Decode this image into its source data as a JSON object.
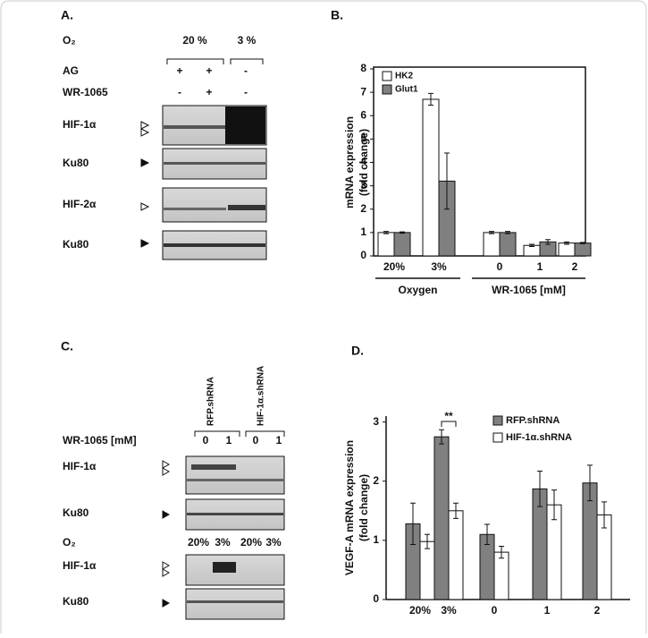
{
  "panel_a": {
    "label": "A.",
    "o2": "O₂",
    "o2_levels": [
      "20 %",
      "3 %"
    ],
    "rows": [
      {
        "name": "AG",
        "marks": [
          "+",
          "+",
          "-"
        ]
      },
      {
        "name": "WR-1065",
        "marks": [
          "-",
          "+",
          "-"
        ]
      }
    ],
    "blots": [
      "HIF-1α",
      "Ku80",
      "HIF-2α",
      "Ku80"
    ]
  },
  "panel_c": {
    "label": "C.",
    "groups": [
      "RFP.shRNA",
      "HIF-1α.shRNA"
    ],
    "wr_label": "WR-1065 [mM]",
    "wr_doses": [
      0,
      1,
      0,
      1
    ],
    "o2": "O₂",
    "o2_levels": [
      "20%",
      "3%",
      "20%",
      "3%"
    ],
    "blots": [
      "HIF-1α",
      "Ku80",
      "HIF-1α",
      "Ku80"
    ]
  },
  "chart_data": [
    {
      "type": "bar",
      "label": "B.",
      "y_label": [
        "mRNA expression",
        "(fold change)"
      ],
      "categories": [
        "20%",
        "3%",
        "0",
        "1",
        "2"
      ],
      "groups": [
        "Oxygen",
        "WR-1065 [mM]"
      ],
      "series": [
        {
          "name": "HK2",
          "color": "#ffffff",
          "values": [
            1.0,
            6.7,
            1.0,
            0.45,
            0.55
          ],
          "errors": [
            0.05,
            0.25,
            0.05,
            0.05,
            0.05
          ]
        },
        {
          "name": "Glut1",
          "color": "#808080",
          "values": [
            1.0,
            3.2,
            1.0,
            0.6,
            0.55
          ],
          "errors": [
            0.03,
            1.2,
            0.05,
            0.1,
            0.03
          ]
        }
      ],
      "ylim": [
        0,
        8
      ],
      "yticks": [
        0,
        1,
        2,
        3,
        4,
        5,
        6,
        7,
        8
      ],
      "legend": "top-left"
    },
    {
      "type": "bar",
      "label": "D.",
      "y_label": [
        "VEGF-A mRNA expression",
        "(fold change)"
      ],
      "categories": [
        "20%",
        "3%",
        "0",
        "1",
        "2"
      ],
      "series": [
        {
          "name": "RFP.shRNA",
          "color": "#808080",
          "values": [
            1.28,
            2.75,
            1.1,
            1.87,
            1.97
          ],
          "errors": [
            0.35,
            0.12,
            0.17,
            0.3,
            0.3
          ]
        },
        {
          "name": "HIF-1α.shRNA",
          "color": "#ffffff",
          "values": [
            0.98,
            1.5,
            0.8,
            1.6,
            1.43
          ],
          "errors": [
            0.12,
            0.13,
            0.1,
            0.25,
            0.22
          ]
        }
      ],
      "ylim": [
        0,
        3.1
      ],
      "yticks": [
        0,
        1,
        2,
        3
      ],
      "legend": "top-right",
      "annotation": "**"
    }
  ]
}
